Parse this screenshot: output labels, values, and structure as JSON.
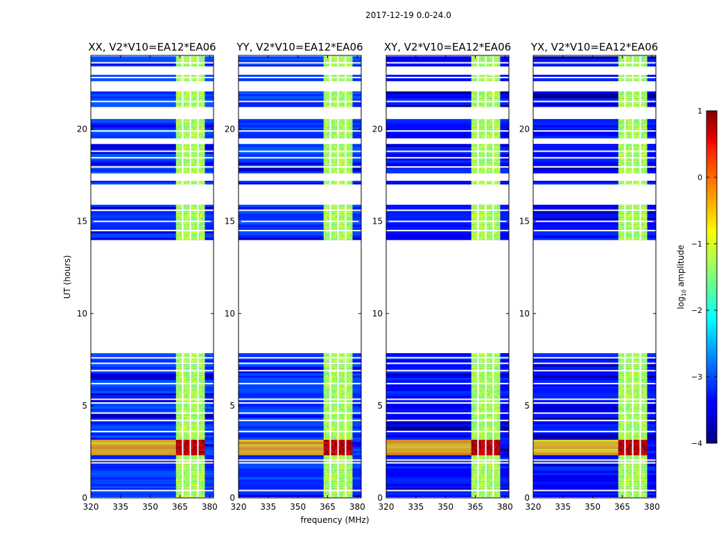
{
  "figure": {
    "suptitle": "2017-12-19 0.0-24.0"
  },
  "chart_data": {
    "type": "heatmap",
    "description_key": "dynamic spectra, log10 amplitude vs frequency and UT",
    "xlabel": "frequency (MHz)",
    "ylabel": "UT (hours)",
    "xlim": [
      320,
      382
    ],
    "ylim": [
      0,
      24
    ],
    "xticks": [
      320,
      335,
      350,
      365,
      380
    ],
    "yticks": [
      0,
      5,
      10,
      15,
      20
    ],
    "panels": [
      {
        "title": "XX, V2*V10=EA12*EA06",
        "pol": "XX"
      },
      {
        "title": "YY, V2*V10=EA12*EA06",
        "pol": "YY"
      },
      {
        "title": "XY, V2*V10=EA12*EA06",
        "pol": "XY"
      },
      {
        "title": "YX, V2*V10=EA12*EA06",
        "pol": "YX"
      }
    ],
    "data_time_blocks_hours": [
      [
        0.05,
        7.85
      ],
      [
        14.0,
        15.9
      ],
      [
        17.0,
        23.95
      ]
    ],
    "flagged_time_ranges_hours": [
      [
        20.55,
        21.2
      ],
      [
        22.05,
        22.6
      ],
      [
        22.95,
        23.4
      ],
      [
        16.0,
        17.0
      ],
      [
        17.2,
        17.6
      ],
      [
        19.2,
        19.5
      ]
    ],
    "rfi_band_mhz": [
      363,
      377.5
    ],
    "rfi_channel_gaps_mhz": [
      366.4,
      370.3,
      374.1
    ],
    "strong_rfi_time_hours": [
      2.3,
      3.1
    ],
    "colorbar": {
      "label": "log10 amplitude",
      "label_prefix": "log",
      "label_sub": "10",
      "label_suffix": " amplitude",
      "min": -4,
      "max": 1,
      "ticks": [
        "1",
        "0",
        "−1",
        "−2",
        "−3",
        "−4"
      ],
      "colormap": "jet"
    },
    "levels": {
      "background": -3.1,
      "background_xy": -3.3,
      "rfi_band": -1.3,
      "strong_rfi": 0.7
    }
  }
}
